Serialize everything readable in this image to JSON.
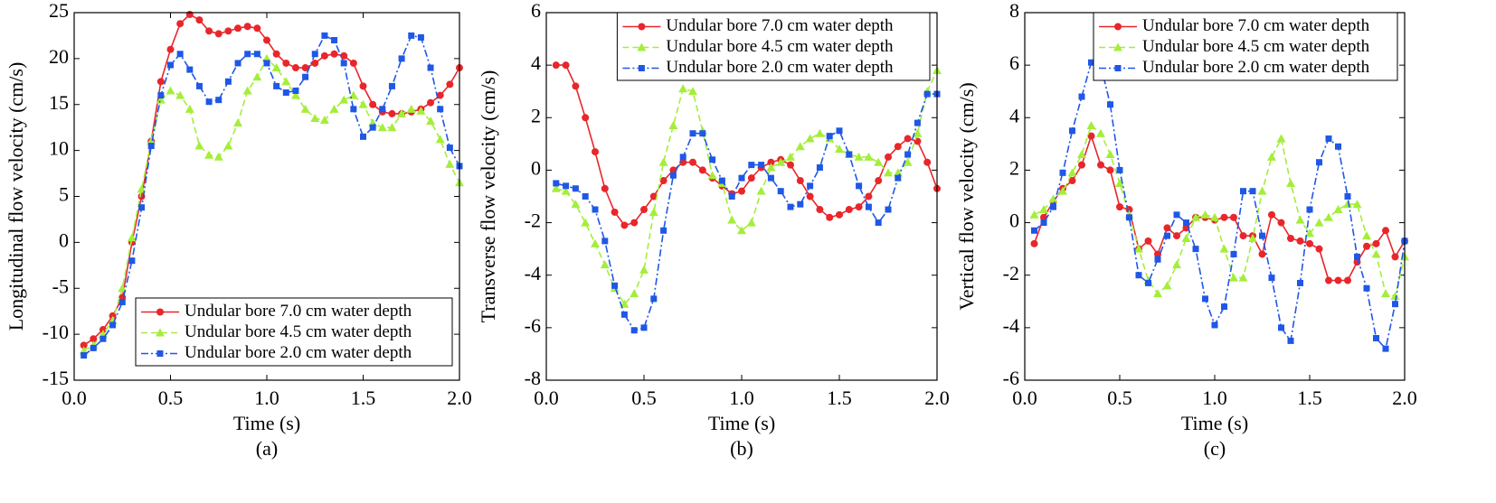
{
  "chart_data": [
    {
      "type": "line",
      "caption": "(a)",
      "xlabel": "Time (s)",
      "ylabel": "Longitudinal flow velocity (cm/s)",
      "xlim": [
        0,
        2
      ],
      "xticks": [
        {
          "value": 0,
          "label": "0.0"
        },
        {
          "value": 0.5,
          "label": "0.5"
        },
        {
          "value": 1,
          "label": "1.0"
        },
        {
          "value": 1.5,
          "label": "1.5"
        },
        {
          "value": 2,
          "label": "2.0"
        }
      ],
      "ylim": [
        -15,
        25
      ],
      "yticks": [
        -15,
        -10,
        -5,
        0,
        5,
        10,
        15,
        20,
        25
      ],
      "grid": false,
      "legend": "lower right",
      "x": [
        0.05,
        0.1,
        0.15,
        0.2,
        0.25,
        0.3,
        0.35,
        0.4,
        0.45,
        0.5,
        0.55,
        0.6,
        0.65,
        0.7,
        0.75,
        0.8,
        0.85,
        0.9,
        0.95,
        1.0,
        1.05,
        1.1,
        1.15,
        1.2,
        1.25,
        1.3,
        1.35,
        1.4,
        1.45,
        1.5,
        1.55,
        1.6,
        1.65,
        1.7,
        1.75,
        1.8,
        1.85,
        1.9,
        1.95,
        2.0
      ],
      "series": [
        {
          "name": "Undular bore 7.0 cm water depth",
          "color": "#e8262b",
          "dash": "solid",
          "marker": "circle",
          "values": [
            -11.2,
            -10.5,
            -9.5,
            -8,
            -6,
            0,
            5,
            11,
            17.5,
            21,
            23.8,
            24.8,
            24.2,
            23,
            22.7,
            23,
            23.3,
            23.5,
            23.3,
            22,
            20.5,
            19.5,
            19,
            19,
            19.5,
            20.3,
            20.5,
            20.3,
            19.5,
            17,
            15,
            14.2,
            14,
            14,
            14.2,
            14.5,
            15.2,
            16,
            17.2,
            19
          ]
        },
        {
          "name": "Undular bore 4.5 cm water depth",
          "color": "#a4ee3a",
          "dash": "dashed",
          "marker": "triangle",
          "values": [
            -11.8,
            -11.2,
            -10,
            -8.5,
            -5,
            0.5,
            5.8,
            11,
            15.5,
            16.5,
            16,
            14.5,
            10.5,
            9.5,
            9.3,
            10.5,
            13,
            16.5,
            18,
            20,
            19,
            17.5,
            16,
            14.5,
            13.5,
            13.3,
            14.5,
            15.5,
            16,
            15,
            13,
            12.5,
            12.5,
            14,
            14.5,
            14.3,
            13.2,
            11.2,
            8.5,
            6.5
          ]
        },
        {
          "name": "Undular bore 2.0 cm water depth",
          "color": "#1f57e6",
          "dash": "dashdot",
          "marker": "square",
          "values": [
            -12.3,
            -11.5,
            -10.5,
            -9,
            -6.5,
            -2,
            3.8,
            10.5,
            16,
            19.3,
            20.5,
            18.8,
            17,
            15.3,
            15.5,
            17.5,
            19.5,
            20.5,
            20.5,
            19.5,
            17,
            16.3,
            16.5,
            18,
            20.5,
            22.5,
            22,
            19.5,
            14.5,
            11.5,
            12.5,
            14.5,
            17,
            20,
            22.5,
            22.3,
            19,
            14.5,
            10.3,
            8.3
          ]
        }
      ]
    },
    {
      "type": "line",
      "caption": "(b)",
      "xlabel": "Time (s)",
      "ylabel": "Transverse flow velocity (cm/s)",
      "xlim": [
        0,
        2
      ],
      "xticks": [
        {
          "value": 0,
          "label": "0.0"
        },
        {
          "value": 0.5,
          "label": "0.5"
        },
        {
          "value": 1,
          "label": "1.0"
        },
        {
          "value": 1.5,
          "label": "1.5"
        },
        {
          "value": 2,
          "label": "2.0"
        }
      ],
      "ylim": [
        -8,
        6
      ],
      "yticks": [
        -8,
        -6,
        -4,
        -2,
        0,
        2,
        4,
        6
      ],
      "grid": false,
      "legend": "upper right",
      "x": [
        0.05,
        0.1,
        0.15,
        0.2,
        0.25,
        0.3,
        0.35,
        0.4,
        0.45,
        0.5,
        0.55,
        0.6,
        0.65,
        0.7,
        0.75,
        0.8,
        0.85,
        0.9,
        0.95,
        1.0,
        1.05,
        1.1,
        1.15,
        1.2,
        1.25,
        1.3,
        1.35,
        1.4,
        1.45,
        1.5,
        1.55,
        1.6,
        1.65,
        1.7,
        1.75,
        1.8,
        1.85,
        1.9,
        1.95,
        2.0
      ],
      "series": [
        {
          "name": "Undular bore 7.0 cm water depth",
          "color": "#e8262b",
          "dash": "solid",
          "marker": "circle",
          "values": [
            4,
            4,
            3.2,
            2,
            0.7,
            -0.7,
            -1.6,
            -2.1,
            -2,
            -1.5,
            -1,
            -0.4,
            0,
            0.3,
            0.3,
            0,
            -0.3,
            -0.6,
            -0.9,
            -0.8,
            -0.3,
            0.1,
            0.3,
            0.4,
            0.2,
            -0.4,
            -1,
            -1.5,
            -1.8,
            -1.7,
            -1.5,
            -1.4,
            -1,
            -0.4,
            0.5,
            0.9,
            1.2,
            1.1,
            0.3,
            -0.7
          ]
        },
        {
          "name": "Undular bore 4.5 cm water depth",
          "color": "#a4ee3a",
          "dash": "dashed",
          "marker": "triangle",
          "values": [
            -0.7,
            -0.8,
            -1.3,
            -2,
            -2.8,
            -3.6,
            -4.5,
            -5.1,
            -4.7,
            -3.8,
            -1.6,
            0.3,
            1.7,
            3.1,
            3,
            1.5,
            -0.2,
            -0.5,
            -1.9,
            -2.3,
            -2,
            -0.8,
            0.1,
            0.3,
            0.5,
            0.9,
            1.2,
            1.4,
            1.2,
            0.8,
            0.6,
            0.5,
            0.5,
            0.3,
            -0.1,
            -0.1,
            0.3,
            1.4,
            3,
            3.8
          ]
        },
        {
          "name": "Undular bore 2.0 cm water depth",
          "color": "#1f57e6",
          "dash": "dashdot",
          "marker": "square",
          "values": [
            -0.5,
            -0.6,
            -0.7,
            -1,
            -1.5,
            -2.7,
            -4.4,
            -5.5,
            -6.1,
            -6,
            -4.9,
            -2.3,
            -0.2,
            0.5,
            1.4,
            1.4,
            0.4,
            -0.4,
            -1,
            -0.3,
            0.2,
            0.2,
            -0.3,
            -0.8,
            -1.4,
            -1.3,
            -0.6,
            0.1,
            1.3,
            1.5,
            0.6,
            -0.6,
            -1.4,
            -2,
            -1.5,
            -0.3,
            0.6,
            1.8,
            2.9,
            2.9
          ]
        }
      ]
    },
    {
      "type": "line",
      "caption": "(c)",
      "xlabel": "Time (s)",
      "ylabel": "Vertical flow velocity (cm/s)",
      "xlim": [
        0,
        2
      ],
      "xticks": [
        {
          "value": 0,
          "label": "0.0"
        },
        {
          "value": 0.5,
          "label": "0.5"
        },
        {
          "value": 1,
          "label": "1.0"
        },
        {
          "value": 1.5,
          "label": "1.5"
        },
        {
          "value": 2,
          "label": "2.0"
        }
      ],
      "ylim": [
        -6,
        8
      ],
      "yticks": [
        -6,
        -4,
        -2,
        0,
        2,
        4,
        6,
        8
      ],
      "grid": false,
      "legend": "upper right",
      "x": [
        0.05,
        0.1,
        0.15,
        0.2,
        0.25,
        0.3,
        0.35,
        0.4,
        0.45,
        0.5,
        0.55,
        0.6,
        0.65,
        0.7,
        0.75,
        0.8,
        0.85,
        0.9,
        0.95,
        1.0,
        1.05,
        1.1,
        1.15,
        1.2,
        1.25,
        1.3,
        1.35,
        1.4,
        1.45,
        1.5,
        1.55,
        1.6,
        1.65,
        1.7,
        1.75,
        1.8,
        1.85,
        1.9,
        1.95,
        2.0
      ],
      "series": [
        {
          "name": "Undular bore 7.0 cm water depth",
          "color": "#e8262b",
          "dash": "solid",
          "marker": "circle",
          "values": [
            -0.8,
            0.2,
            0.8,
            1.3,
            1.6,
            2.2,
            3.3,
            2.2,
            2,
            0.6,
            0.5,
            -1,
            -0.7,
            -1.2,
            -0.2,
            -0.5,
            -0.2,
            0.2,
            0.2,
            0.1,
            0.2,
            0.2,
            -0.5,
            -0.5,
            -1.2,
            0.3,
            0,
            -0.6,
            -0.7,
            -0.8,
            -1,
            -2.2,
            -2.2,
            -2.2,
            -1.5,
            -0.9,
            -0.8,
            -0.3,
            -1.3,
            -0.7
          ]
        },
        {
          "name": "Undular bore 4.5 cm water depth",
          "color": "#a4ee3a",
          "dash": "dashed",
          "marker": "triangle",
          "values": [
            0.3,
            0.5,
            0.9,
            1.2,
            1.9,
            2.6,
            3.7,
            3.4,
            2.6,
            1.5,
            0.3,
            -1,
            -2.2,
            -2.7,
            -2.4,
            -1.6,
            -0.6,
            0.2,
            0.3,
            0.2,
            -1,
            -2.1,
            -2.1,
            -0.6,
            1.2,
            2.5,
            3.2,
            1.5,
            0.1,
            -0.4,
            0,
            0.2,
            0.5,
            0.7,
            0.7,
            -0.5,
            -1.2,
            -2.7,
            -2.8,
            -1.3
          ]
        },
        {
          "name": "Undular bore 2.0 cm water depth",
          "color": "#1f57e6",
          "dash": "dashdot",
          "marker": "square",
          "values": [
            -0.3,
            0,
            0.6,
            1.9,
            3.5,
            4.8,
            6.1,
            6,
            4.5,
            2,
            0.2,
            -2,
            -2.3,
            -1.4,
            -0.5,
            0.3,
            0,
            -1,
            -2.9,
            -3.9,
            -3.2,
            -1.2,
            1.2,
            1.2,
            -0.5,
            -2.1,
            -4,
            -4.5,
            -2.3,
            0.5,
            2.3,
            3.2,
            2.9,
            1,
            -1.3,
            -2.5,
            -4.4,
            -4.8,
            -3.1,
            -0.7
          ]
        }
      ]
    }
  ]
}
